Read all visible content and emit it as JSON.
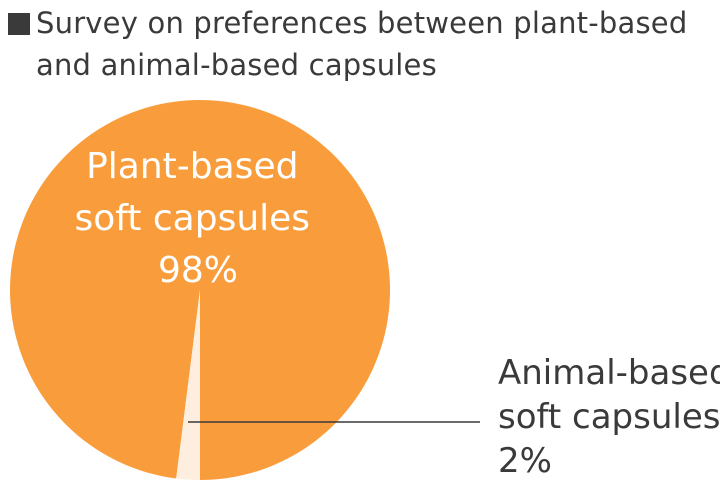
{
  "chart_data": {
    "type": "pie",
    "title_lines": [
      "Survey on preferences between plant-based",
      "and animal-based capsules"
    ],
    "slices": [
      {
        "label_lines": [
          "Plant-based",
          "soft capsules"
        ],
        "value": 98,
        "value_label": "98%",
        "color": "#f99d3c"
      },
      {
        "label_lines": [
          "Animal-based",
          "soft capsules"
        ],
        "value": 2,
        "value_label": "2%",
        "color": "#fdeedf"
      }
    ]
  }
}
